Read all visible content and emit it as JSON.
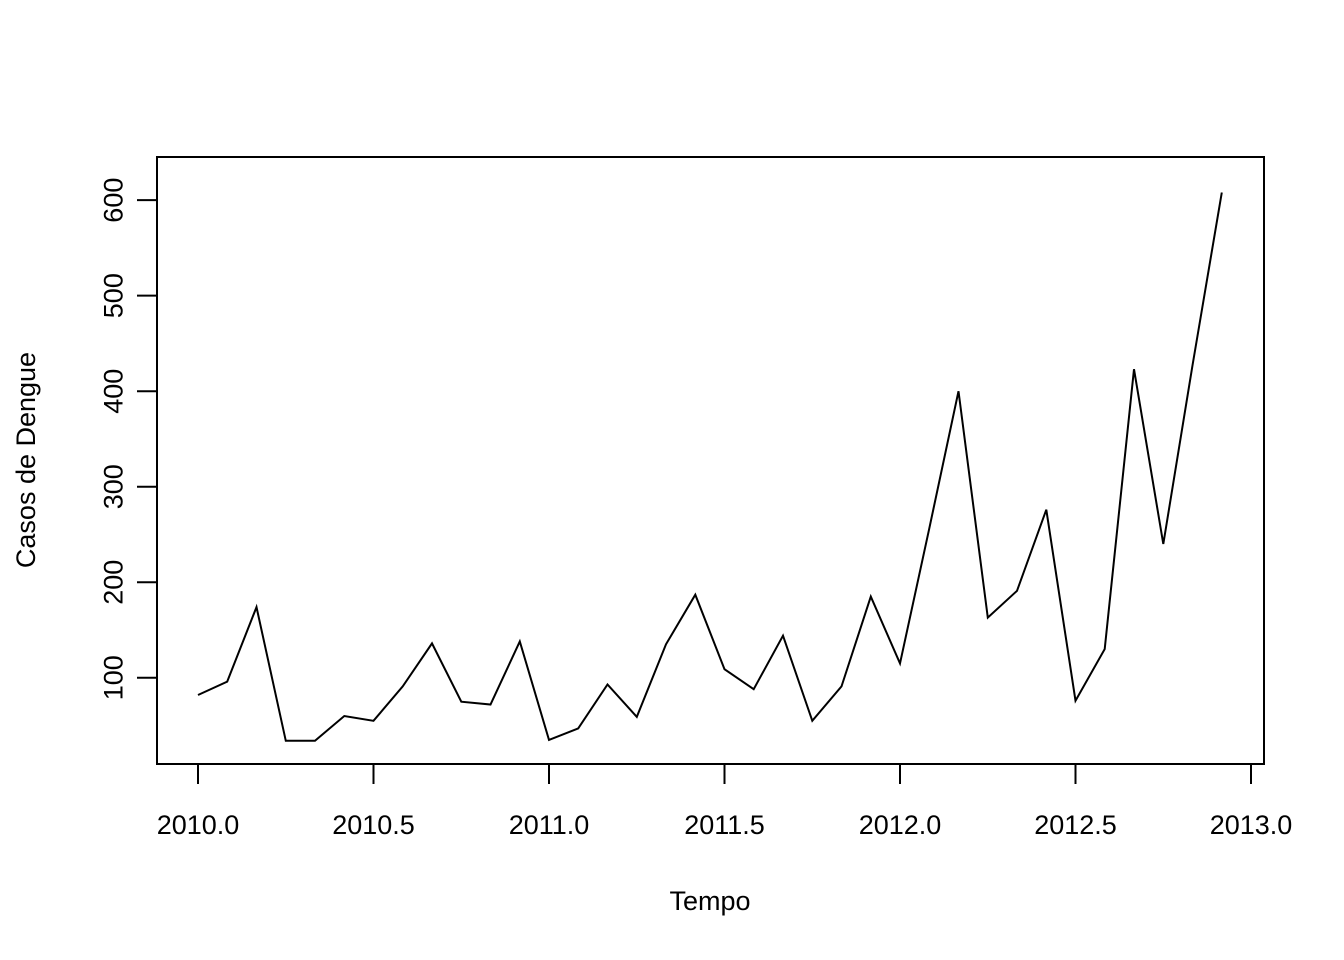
{
  "chart_data": {
    "type": "line",
    "title": "",
    "xlabel": "Tempo",
    "ylabel": "Casos de Dengue",
    "xlim": [
      2010.0,
      2013.0
    ],
    "ylim": [
      0,
      630
    ],
    "x_ticks": [
      "2010.0",
      "2010.5",
      "2011.0",
      "2011.5",
      "2012.0",
      "2012.5",
      "2013.0"
    ],
    "y_ticks": [
      "100",
      "200",
      "300",
      "400",
      "500",
      "600"
    ],
    "grid": false,
    "line_color": "#000000",
    "series": [
      {
        "x": [
          2010.0,
          2010.0833,
          2010.1667,
          2010.25,
          2010.3333,
          2010.4167,
          2010.5,
          2010.5833,
          2010.6667,
          2010.75,
          2010.8333,
          2010.9167,
          2011.0,
          2011.0833,
          2011.1667,
          2011.25,
          2011.3333,
          2011.4167,
          2011.5,
          2011.5833,
          2011.6667,
          2011.75,
          2011.8333,
          2011.9167,
          2012.0,
          2012.0833,
          2012.1667,
          2012.25,
          2012.3333,
          2012.4167,
          2012.5,
          2012.5833,
          2012.6667,
          2012.75,
          2012.8333,
          2012.9167
        ],
        "values": [
          82,
          96,
          174,
          34,
          34,
          60,
          55,
          91,
          136,
          75,
          72,
          138,
          35,
          47,
          93,
          59,
          135,
          187,
          109,
          88,
          144,
          55,
          91,
          185,
          115,
          256,
          400,
          163,
          191,
          276,
          76,
          130,
          423,
          240,
          427,
          608
        ]
      }
    ]
  }
}
